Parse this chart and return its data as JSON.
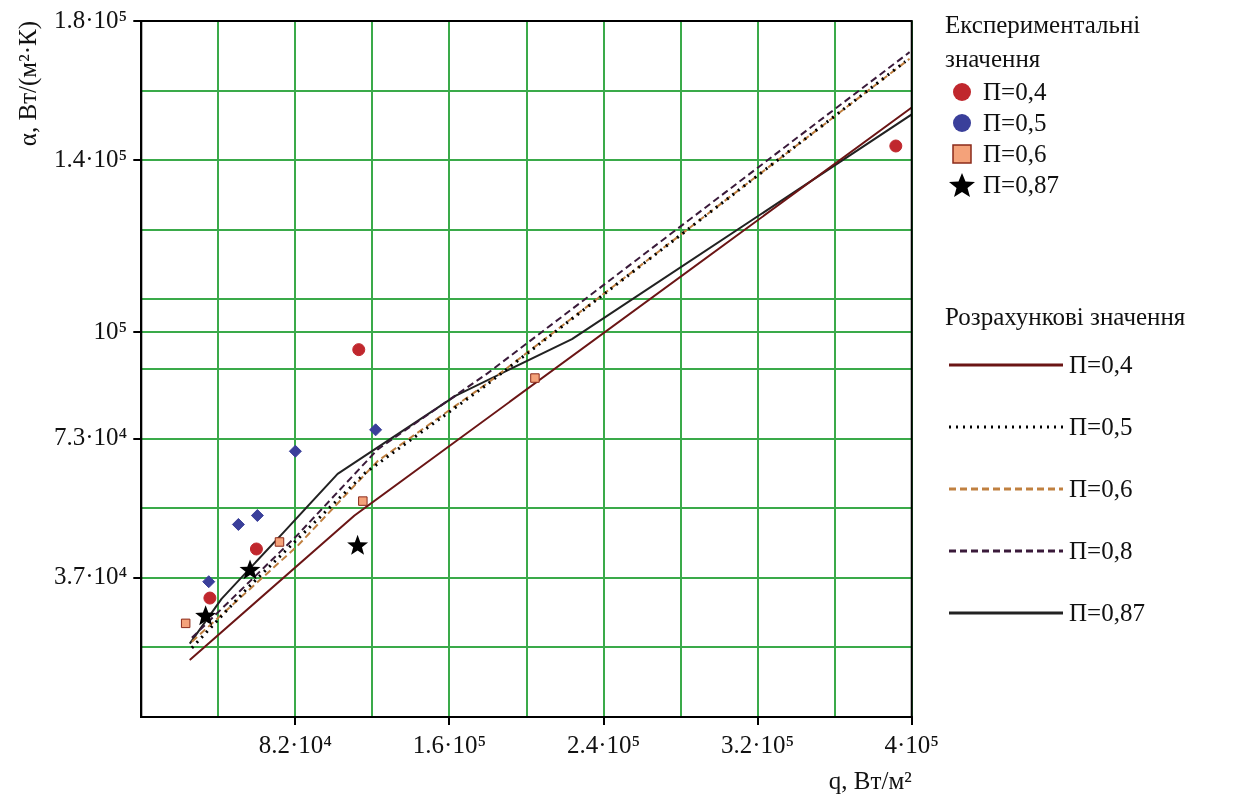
{
  "chart_data": {
    "type": "scatter",
    "xlabel": "q, Вт/м²",
    "ylabel": "α, Вт/(м²·К)",
    "legend_title": "Експериментальні значення",
    "annotations": [
      "Розрахункові значення"
    ],
    "legend": "right",
    "grid": true,
    "xlim": [
      2500,
      400000
    ],
    "xticks": [
      {
        "value": 42250,
        "label": null
      },
      {
        "value": 82000,
        "label": "8.2·10⁴"
      },
      {
        "value": 121750,
        "label": null
      },
      {
        "value": 161500,
        "label": "1.6·10⁵"
      },
      {
        "value": 201250,
        "label": null
      },
      {
        "value": 241000,
        "label": "2.4·10⁵"
      },
      {
        "value": 280750,
        "label": null
      },
      {
        "value": 320500,
        "label": "3.2·10⁵"
      },
      {
        "value": 360250,
        "label": null
      },
      {
        "value": 400000,
        "label": "4·10⁵"
      }
    ],
    "ylim": [
      1250,
      180000
    ],
    "yticks": [
      {
        "value": 19125,
        "label": null
      },
      {
        "value": 37000,
        "label": "3.7·10⁴"
      },
      {
        "value": 54875,
        "label": null
      },
      {
        "value": 72750,
        "label": "7.3·10⁴"
      },
      {
        "value": 90625,
        "label": null
      },
      {
        "value": 100000,
        "label": "10⁵"
      },
      {
        "value": 108500,
        "label": null
      },
      {
        "value": 126375,
        "label": null
      },
      {
        "value": 144250,
        "label": "1.4·10⁵"
      },
      {
        "value": 162125,
        "label": null
      },
      {
        "value": 180000,
        "label": "1.8·10⁵"
      }
    ],
    "series": [
      {
        "name": "П=0,4",
        "type": "scatter",
        "marker": "circle",
        "color": "#c0272d",
        "x": [
          37900,
          61900,
          114700,
          391800
        ],
        "values": [
          31800,
          44400,
          95600,
          147900
        ]
      },
      {
        "name": "П=0,5",
        "type": "scatter",
        "marker": "diamond",
        "color": "#3a3f9a",
        "x": [
          37300,
          52600,
          62400,
          82000,
          123400
        ],
        "values": [
          36000,
          50700,
          53000,
          69500,
          75000
        ]
      },
      {
        "name": "П=0,6",
        "type": "scatter",
        "marker": "square",
        "color": "#f4a27a",
        "x": [
          25400,
          73800,
          116800,
          205600
        ],
        "values": [
          25300,
          46200,
          56700,
          88300
        ]
      },
      {
        "name": "П=0,87",
        "type": "scatter",
        "marker": "star",
        "color": "#000000",
        "x": [
          35700,
          58600,
          114100
        ],
        "values": [
          27100,
          38900,
          45200
        ]
      },
      {
        "name": "П=0,4",
        "type": "line",
        "line_style": "solid",
        "color": "#6b1515",
        "x": [
          27500,
          112500,
          400000
        ],
        "values": [
          15900,
          53000,
          157800
        ]
      },
      {
        "name": "П=0,5",
        "type": "line",
        "line_style": "dotted",
        "color": "#000000",
        "x": [
          28600,
          58000,
          117900,
          178900,
          396700
        ],
        "values": [
          19000,
          34700,
          63900,
          85900,
          169600
        ]
      },
      {
        "name": "П=0,6",
        "type": "line",
        "line_style": "dashed",
        "color": "#c08040",
        "x": [
          28600,
          83100,
          124500,
          181100,
          398900
        ],
        "values": [
          20600,
          45200,
          67000,
          87000,
          170300
        ]
      },
      {
        "name": "П=0,8",
        "type": "line",
        "line_style": "dashed",
        "color": "#3a1a3a",
        "x": [
          28600,
          83100,
          124500,
          181100,
          398900
        ],
        "values": [
          21600,
          48000,
          70000,
          89500,
          172000
        ]
      },
      {
        "name": "П=0,87",
        "type": "line",
        "line_style": "solid",
        "color": "#222222",
        "x": [
          27500,
          43900,
          76500,
          103800,
          164800,
          224700,
          400000
        ],
        "values": [
          20100,
          31600,
          49000,
          63700,
          83800,
          98300,
          156000
        ]
      }
    ]
  }
}
